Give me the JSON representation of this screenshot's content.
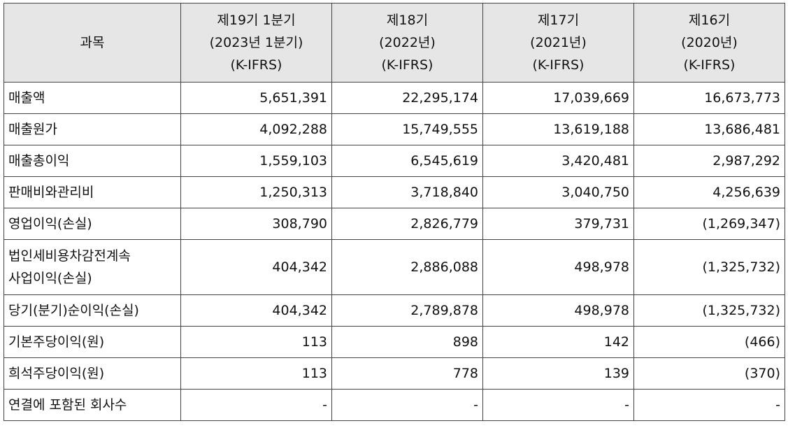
{
  "header": {
    "subject": "과목",
    "periods": [
      {
        "line1": "제19기 1분기",
        "line2": "(2023년 1분기)",
        "line3": "(K-IFRS)"
      },
      {
        "line1": "제18기",
        "line2": "(2022년)",
        "line3": "(K-IFRS)"
      },
      {
        "line1": "제17기",
        "line2": "(2021년)",
        "line3": "(K-IFRS)"
      },
      {
        "line1": "제16기",
        "line2": "(2020년)",
        "line3": "(K-IFRS)"
      }
    ]
  },
  "rows": [
    {
      "label": "매출액",
      "values": [
        "5,651,391",
        "22,295,174",
        "17,039,669",
        "16,673,773"
      ]
    },
    {
      "label": "매출원가",
      "values": [
        "4,092,288",
        "15,749,555",
        "13,619,188",
        "13,686,481"
      ]
    },
    {
      "label": "매출총이익",
      "values": [
        "1,559,103",
        "6,545,619",
        "3,420,481",
        "2,987,292"
      ]
    },
    {
      "label": "판매비와관리비",
      "values": [
        "1,250,313",
        "3,718,840",
        "3,040,750",
        "4,256,639"
      ]
    },
    {
      "label": "영업이익(손실)",
      "values": [
        "308,790",
        "2,826,779",
        "379,731",
        "(1,269,347)"
      ]
    },
    {
      "label": "법인세비용차감전계속",
      "label2": "사업이익(손실)",
      "values": [
        "404,342",
        "2,886,088",
        "498,978",
        "(1,325,732)"
      ]
    },
    {
      "label": "당기(분기)순이익(손실)",
      "values": [
        "404,342",
        "2,789,878",
        "498,978",
        "(1,325,732)"
      ]
    },
    {
      "label": "기본주당이익(원)",
      "values": [
        "113",
        "898",
        "142",
        "(466)"
      ]
    },
    {
      "label": "희석주당이익(원)",
      "values": [
        "113",
        "778",
        "139",
        "(370)"
      ]
    },
    {
      "label": "연결에 포함된 회사수",
      "values": [
        "-",
        "-",
        "-",
        "-"
      ]
    }
  ]
}
